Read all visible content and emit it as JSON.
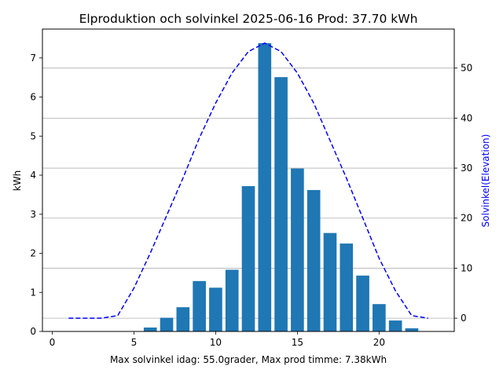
{
  "chart_data": {
    "type": "bar",
    "title": "Elproduktion och solvinkel 2025-06-16 Prod: 37.70 kWh",
    "xlabel": "Max solvinkel idag: 55.0grader, Max prod timme: 7.38kWh",
    "ylabel": "kWh",
    "y2label": "Solvinkel(Elevation)",
    "xlim": [
      -0.6,
      24.6
    ],
    "ylim": [
      0,
      7.74
    ],
    "y2lim": [
      -2.65,
      57.8
    ],
    "x_ticks": [
      0,
      5,
      10,
      15,
      20
    ],
    "y_ticks": [
      0,
      1,
      2,
      3,
      4,
      5,
      6,
      7
    ],
    "y2_ticks": [
      0,
      10,
      20,
      30,
      40,
      50
    ],
    "grid": "horizontal, right axis",
    "bar_color": "#1f77b4",
    "line_color": "#0000ff",
    "series": [
      {
        "type": "bar",
        "axis": "left",
        "x": [
          6,
          7,
          8,
          9,
          10,
          11,
          12,
          13,
          14,
          15,
          16,
          17,
          18,
          19,
          20,
          21,
          22
        ],
        "values": [
          0.1,
          0.35,
          0.62,
          1.29,
          1.12,
          1.58,
          3.72,
          7.38,
          6.51,
          4.17,
          3.62,
          2.52,
          2.25,
          1.43,
          0.7,
          0.28,
          0.08
        ]
      },
      {
        "type": "line",
        "style": "dashed",
        "axis": "right",
        "x": [
          1,
          2,
          3,
          4,
          5,
          6,
          7,
          8,
          9,
          10,
          11,
          12,
          13,
          14,
          15,
          16,
          17,
          18,
          19,
          20,
          21,
          22,
          23
        ],
        "values": [
          0,
          0,
          0,
          0.5,
          6,
          13,
          20.5,
          28,
          36,
          43,
          49,
          53.3,
          55,
          53.3,
          49,
          43,
          35.5,
          28,
          20,
          12,
          5.5,
          0.5,
          0
        ]
      }
    ]
  }
}
